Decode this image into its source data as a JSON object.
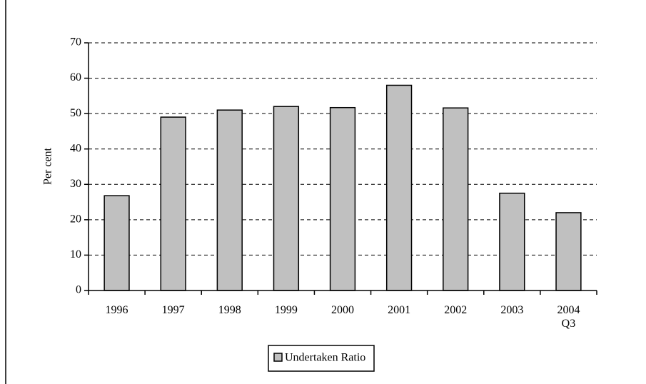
{
  "chart_data": {
    "type": "bar",
    "ylabel": "Per cent",
    "categories": [
      "1996",
      "1997",
      "1998",
      "1999",
      "2000",
      "2001",
      "2002",
      "2003",
      "2004\nQ3"
    ],
    "series": [
      {
        "name": "Undertaken Ratio",
        "color": "#c0c0c0",
        "values": [
          26.8,
          49,
          51,
          52,
          51.7,
          58,
          51.6,
          27.5,
          22
        ]
      }
    ],
    "ylim": [
      0,
      70
    ],
    "yticks": [
      0,
      10,
      20,
      30,
      40,
      50,
      60,
      70
    ],
    "grid": true,
    "legend": "bottom"
  }
}
